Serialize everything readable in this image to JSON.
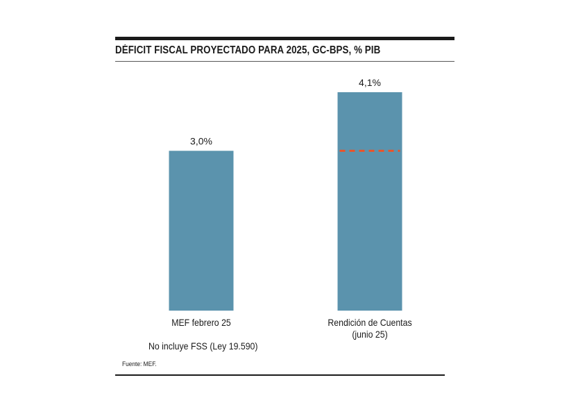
{
  "chart_data": {
    "type": "bar",
    "title": "DÉFICIT FISCAL PROYECTADO PARA 2025, GC-BPS, % PIB",
    "categories": [
      "MEF febrero 25",
      "Rendición de Cuentas (junio 25)"
    ],
    "category_lines": [
      [
        "MEF febrero 25"
      ],
      [
        "Rendición de Cuentas",
        "(junio 25)"
      ]
    ],
    "values": [
      3.0,
      4.1
    ],
    "value_labels": [
      "3,0%",
      "4,1%"
    ],
    "reference_line": {
      "value": 3.0,
      "style": "dashed",
      "color": "#e8542b",
      "on_category": 1
    },
    "ylim": [
      0,
      4.1
    ],
    "bar_color": "#5b93ad",
    "grid": false,
    "note": "No incluye FSS (Ley 19.590)",
    "source": "Fuente: MEF."
  }
}
